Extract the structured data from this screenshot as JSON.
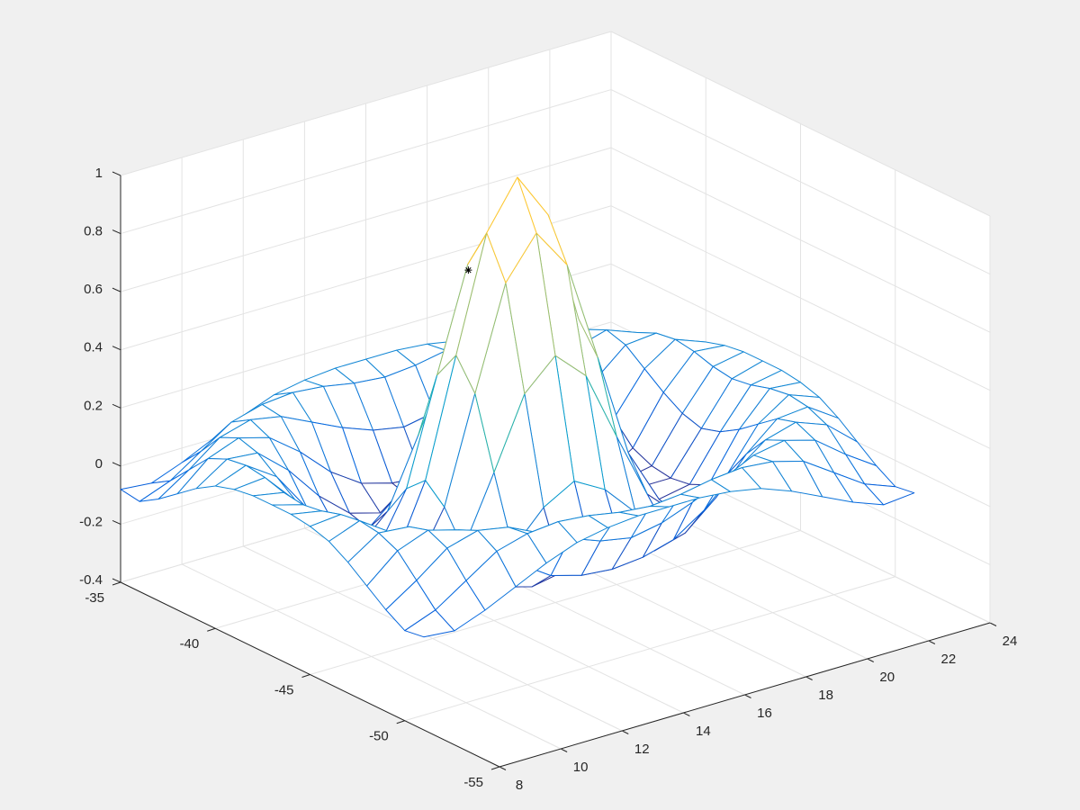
{
  "chart_data": {
    "type": "mesh",
    "colormap": "parula",
    "grid": true,
    "x": [
      8,
      9,
      10,
      11,
      12,
      13,
      14,
      15,
      16,
      17,
      18,
      19,
      20,
      21,
      22,
      23,
      24
    ],
    "y": [
      -51,
      -50,
      -49,
      -48,
      -47,
      -46,
      -45,
      -44,
      -43,
      -42,
      -41,
      -40,
      -39,
      -38,
      -37,
      -36,
      -35
    ],
    "z": [
      [
        -0.08,
        -0.09,
        -0.05,
        0,
        0.05,
        0.09,
        0.11,
        0.12,
        0.12,
        0.12,
        0.11,
        0.09,
        0.05,
        0,
        -0.05,
        -0.09,
        -0.08
      ],
      [
        -0.09,
        -0.05,
        0.02,
        0.09,
        0.12,
        0.13,
        0.12,
        0.1,
        0.09,
        0.1,
        0.12,
        0.13,
        0.12,
        0.09,
        0.02,
        -0.05,
        -0.09
      ],
      [
        -0.05,
        0.02,
        0.1,
        0.13,
        0.11,
        0.06,
        0.01,
        -0.03,
        -0.05,
        -0.03,
        0.01,
        0.06,
        0.11,
        0.13,
        0.1,
        0.02,
        -0.05
      ],
      [
        0,
        0.09,
        0.13,
        0.1,
        0.02,
        -0.08,
        -0.15,
        -0.18,
        -0.19,
        -0.18,
        -0.15,
        -0.08,
        0.02,
        0.1,
        0.13,
        0.09,
        0
      ],
      [
        0.05,
        0.12,
        0.11,
        0.02,
        -0.1,
        -0.19,
        -0.22,
        -0.2,
        -0.19,
        -0.2,
        -0.22,
        -0.19,
        -0.1,
        0.02,
        0.11,
        0.12,
        0.05
      ],
      [
        0.09,
        0.13,
        0.06,
        -0.08,
        -0.19,
        -0.21,
        -0.12,
        -0.01,
        0.05,
        -0.01,
        -0.12,
        -0.21,
        -0.19,
        -0.08,
        0.06,
        0.13,
        0.09
      ],
      [
        0.11,
        0.12,
        0.01,
        -0.15,
        -0.22,
        -0.12,
        0.11,
        0.35,
        0.45,
        0.35,
        0.11,
        -0.12,
        -0.22,
        -0.15,
        0.01,
        0.12,
        0.11
      ],
      [
        0.12,
        0.1,
        -0.03,
        -0.18,
        -0.2,
        -0.01,
        0.35,
        0.7,
        0.84,
        0.7,
        0.35,
        -0.01,
        -0.2,
        -0.18,
        -0.03,
        0.1,
        0.12
      ],
      [
        0.12,
        0.09,
        -0.05,
        -0.19,
        -0.19,
        0.05,
        0.45,
        0.84,
        1,
        0.84,
        0.45,
        0.05,
        -0.19,
        -0.19,
        -0.05,
        0.09,
        0.12
      ],
      [
        0.12,
        0.1,
        -0.03,
        -0.18,
        -0.2,
        -0.01,
        0.35,
        0.7,
        0.84,
        0.7,
        0.35,
        -0.01,
        -0.2,
        -0.18,
        -0.03,
        0.1,
        0.12
      ],
      [
        0.11,
        0.12,
        0.01,
        -0.15,
        -0.22,
        -0.12,
        0.11,
        0.35,
        0.45,
        0.35,
        0.11,
        -0.12,
        -0.22,
        -0.15,
        0.01,
        0.12,
        0.11
      ],
      [
        0.09,
        0.13,
        0.06,
        -0.08,
        -0.19,
        -0.21,
        -0.12,
        -0.01,
        0.05,
        -0.01,
        -0.12,
        -0.21,
        -0.19,
        -0.08,
        0.06,
        0.13,
        0.09
      ],
      [
        0.05,
        0.12,
        0.11,
        0.02,
        -0.1,
        -0.19,
        -0.22,
        -0.2,
        -0.19,
        -0.2,
        -0.22,
        -0.19,
        -0.1,
        0.02,
        0.11,
        0.12,
        0.05
      ],
      [
        0,
        0.09,
        0.13,
        0.1,
        0.02,
        -0.08,
        -0.15,
        -0.18,
        -0.19,
        -0.18,
        -0.15,
        -0.08,
        0.02,
        0.1,
        0.13,
        0.09,
        0
      ],
      [
        -0.05,
        0.02,
        0.1,
        0.13,
        0.11,
        0.06,
        0.01,
        -0.03,
        -0.05,
        -0.03,
        0.01,
        0.06,
        0.11,
        0.13,
        0.1,
        0.02,
        -0.05
      ],
      [
        -0.09,
        -0.05,
        0.02,
        0.09,
        0.12,
        0.13,
        0.12,
        0.1,
        0.09,
        0.1,
        0.12,
        0.13,
        0.12,
        0.09,
        0.02,
        -0.05,
        -0.09
      ],
      [
        -0.08,
        -0.09,
        -0.05,
        0,
        0.05,
        0.09,
        0.11,
        0.12,
        0.12,
        0.12,
        0.11,
        0.09,
        0.05,
        0,
        -0.05,
        -0.09,
        -0.08
      ]
    ],
    "marker_point": {
      "x": 14.4,
      "y": -43,
      "z": 0.73,
      "color": "#000000"
    },
    "xlim": [
      8,
      24
    ],
    "xticks": [
      8,
      10,
      12,
      14,
      16,
      18,
      20,
      22,
      24
    ],
    "ylim": [
      -55,
      -35
    ],
    "yticks": [
      -55,
      -50,
      -45,
      -40,
      -35
    ],
    "zlim": [
      -0.4,
      1
    ],
    "zticks": [
      -0.4,
      -0.2,
      0,
      0.2,
      0.4,
      0.6,
      0.8,
      1
    ]
  }
}
